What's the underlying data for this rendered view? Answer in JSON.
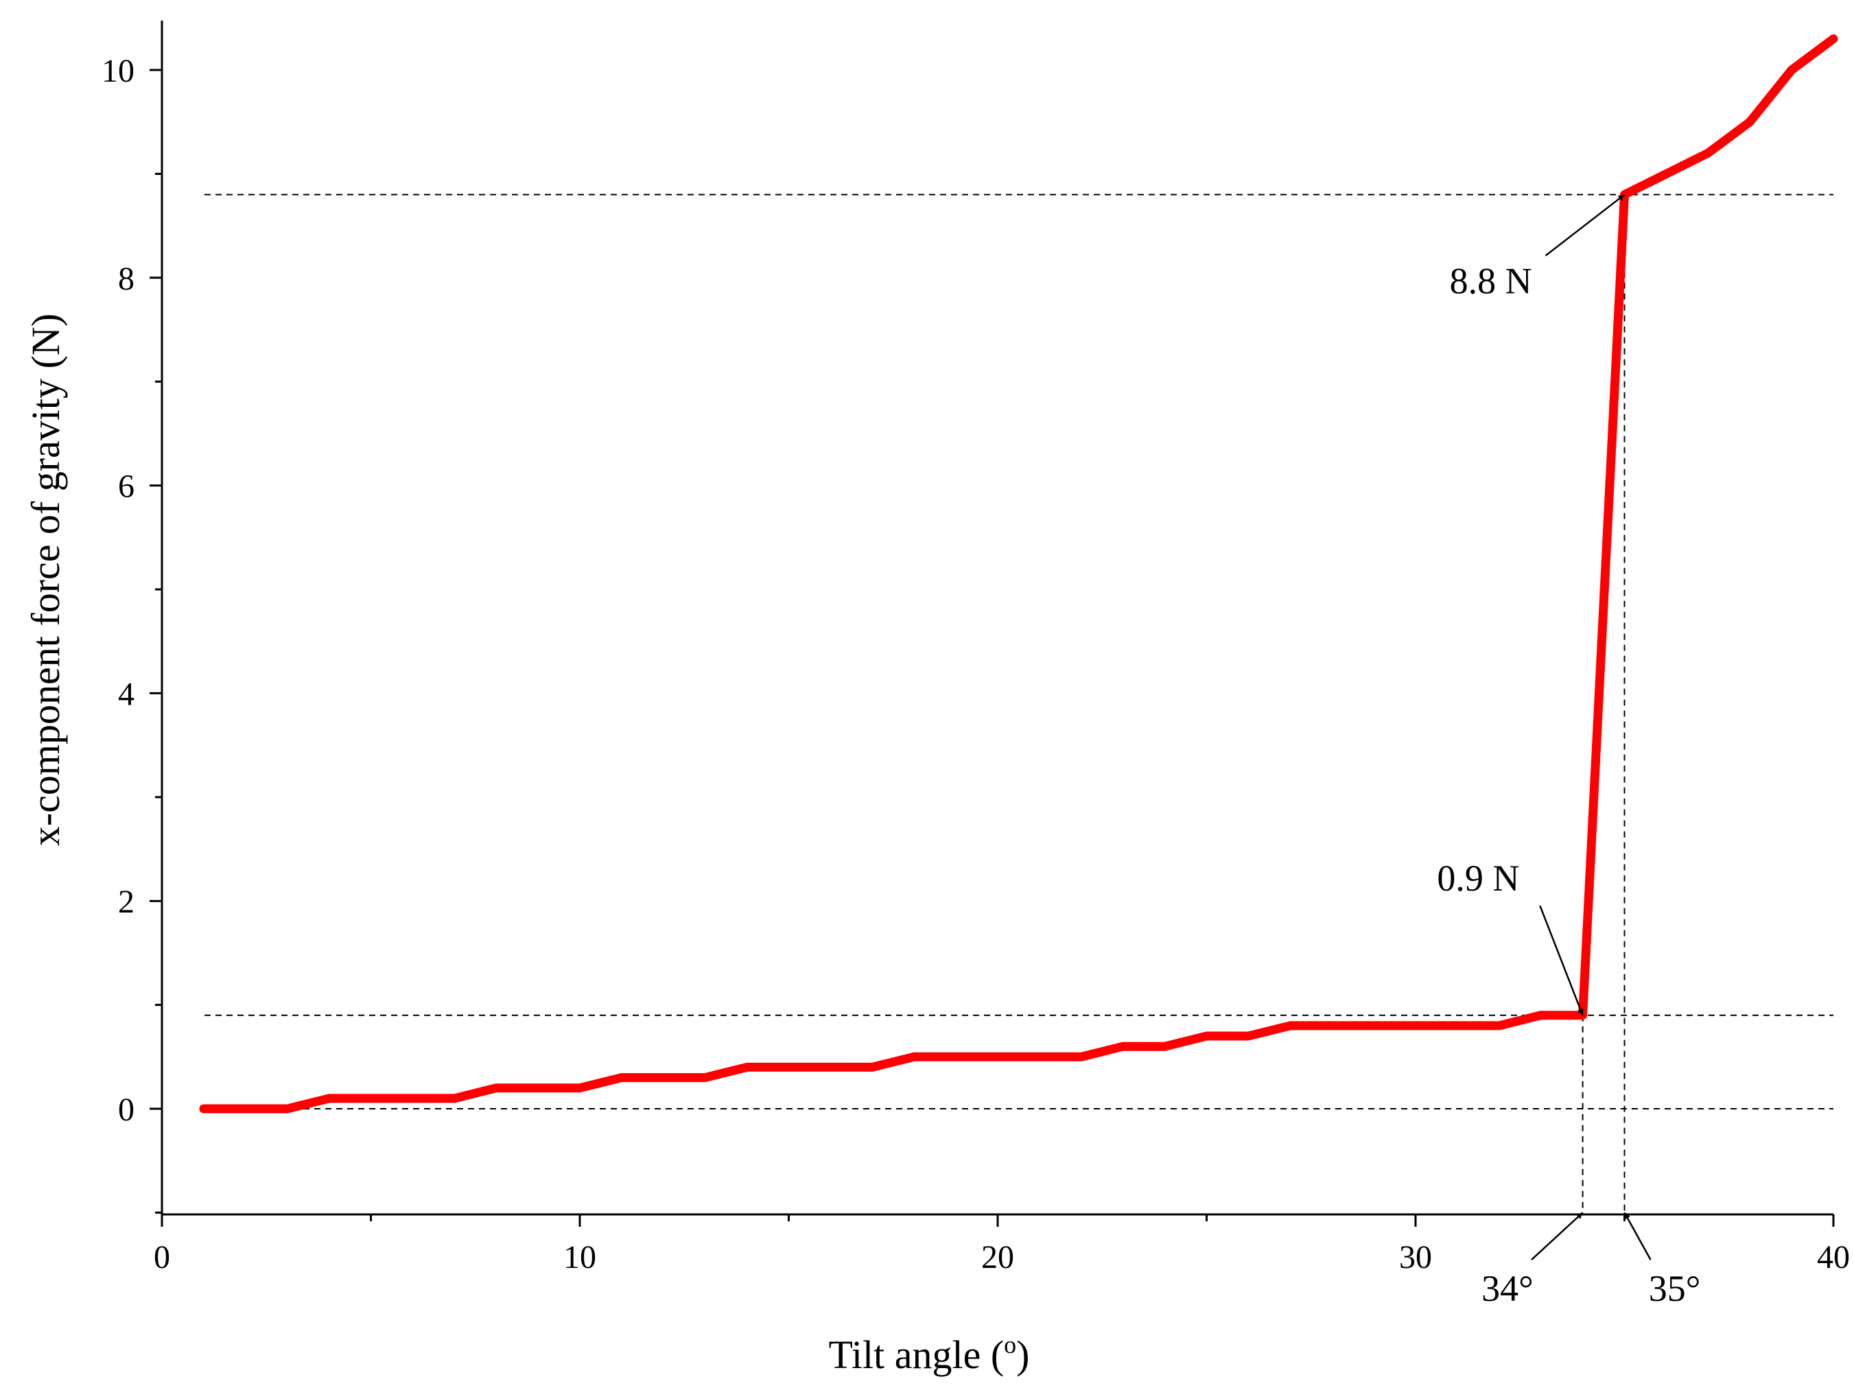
{
  "chart_data": {
    "type": "line",
    "xlabel": "Tilt angle (",
    "xlabel_superscript": "o",
    "xlabel_suffix": ")",
    "ylabel": "x-component force of gravity (N)",
    "xlim": [
      0,
      40
    ],
    "ylim": [
      -1,
      10.5
    ],
    "x_ticks": [
      0,
      10,
      20,
      30,
      40
    ],
    "x_tick_labels": [
      "0",
      "10",
      "20",
      "30",
      "40"
    ],
    "x_minor_ticks": [
      5,
      15,
      25,
      35
    ],
    "y_ticks": [
      0,
      2,
      4,
      6,
      8,
      10
    ],
    "y_tick_labels": [
      "0",
      "2",
      "4",
      "6",
      "8",
      "10"
    ],
    "y_minor_ticks": [
      -1,
      1,
      3,
      5,
      7,
      9
    ],
    "grid": false,
    "line_color": "#ff0000",
    "reference_color": "#000000",
    "series": [
      {
        "x": [
          1,
          2,
          3,
          4,
          5,
          6,
          7,
          8,
          9,
          10,
          11,
          12,
          13,
          14,
          15,
          16,
          17,
          18,
          19,
          20,
          21,
          22,
          23,
          24,
          25,
          26,
          27,
          28,
          29,
          30,
          31,
          32,
          33,
          34,
          35,
          36,
          37,
          38,
          39,
          40
        ],
        "y": [
          0,
          0,
          0,
          0.1,
          0.1,
          0.1,
          0.1,
          0.2,
          0.2,
          0.2,
          0.3,
          0.3,
          0.3,
          0.4,
          0.4,
          0.4,
          0.4,
          0.5,
          0.5,
          0.5,
          0.5,
          0.5,
          0.6,
          0.6,
          0.7,
          0.7,
          0.8,
          0.8,
          0.8,
          0.8,
          0.8,
          0.8,
          0.9,
          0.9,
          8.8,
          9.0,
          9.2,
          9.5,
          10.0,
          10.3
        ]
      }
    ],
    "reference_lines": {
      "horizontal": [
        8.8,
        0.9,
        0
      ],
      "vertical": [
        {
          "x": 34,
          "y_top": 0.9
        },
        {
          "x": 35,
          "y_top": 8.8
        }
      ]
    },
    "annotations": [
      {
        "name": "force-8-8",
        "text": "8.8 N",
        "target": [
          35,
          8.8
        ],
        "label_at": [
          31.8,
          7.85
        ]
      },
      {
        "name": "force-0-9",
        "text": "0.9 N",
        "target": [
          34,
          0.9
        ],
        "label_at": [
          31.5,
          2.1
        ]
      },
      {
        "name": "angle-34",
        "text": "34°",
        "target": [
          34,
          -1
        ],
        "label_at": [
          32.2,
          -1.85
        ]
      },
      {
        "name": "angle-35",
        "text": "35°",
        "target": [
          35,
          -1
        ],
        "label_at": [
          36.2,
          -1.85
        ]
      }
    ]
  }
}
